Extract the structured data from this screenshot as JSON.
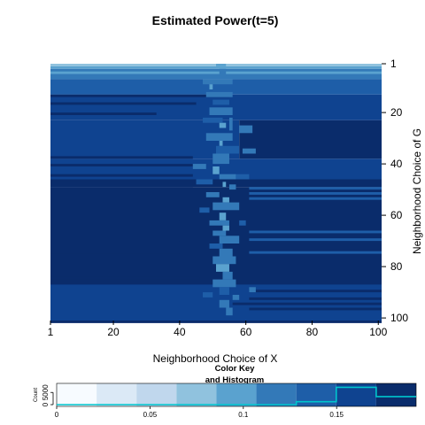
{
  "chart_data": {
    "type": "heatmap",
    "title": "Estimated Power(t=5)",
    "xlabel": "Neighborhood Choice of X",
    "ylabel": "Neighborhood Choice of G",
    "x_range": [
      1,
      101
    ],
    "y_range": [
      1,
      101
    ],
    "x_ticks": [
      1,
      20,
      40,
      60,
      80,
      100
    ],
    "y_ticks": [
      1,
      20,
      40,
      60,
      80,
      100
    ],
    "colorscale": [
      "#f7fbff",
      "#dbe9f6",
      "#c0d7ed",
      "#90c2de",
      "#5aa2cf",
      "#3379b8",
      "#1e5ea8",
      "#0f4390",
      "#0a2c6b"
    ],
    "color_breaks": [
      0,
      0.0214,
      0.0428,
      0.0642,
      0.0856,
      0.107,
      0.1284,
      0.1498,
      0.1712,
      0.1926
    ],
    "heat_rows": [
      {
        "y": [
          1,
          1
        ],
        "segs": [
          [
            1,
            101,
            3
          ]
        ]
      },
      {
        "y": [
          2,
          2
        ],
        "segs": [
          [
            1,
            101,
            4
          ]
        ]
      },
      {
        "y": [
          3,
          6
        ],
        "segs": [
          [
            1,
            101,
            5
          ]
        ]
      },
      {
        "y": [
          7,
          12
        ],
        "segs": [
          [
            1,
            101,
            6
          ]
        ]
      },
      {
        "y": [
          13,
          22
        ],
        "segs": [
          [
            1,
            101,
            7
          ]
        ]
      },
      {
        "y": [
          23,
          37
        ],
        "segs": [
          [
            1,
            58,
            7
          ],
          [
            58,
            101,
            8
          ]
        ]
      },
      {
        "y": [
          38,
          45
        ],
        "segs": [
          [
            1,
            101,
            7
          ]
        ]
      },
      {
        "y": [
          46,
          48
        ],
        "segs": [
          [
            1,
            101,
            8
          ]
        ]
      },
      {
        "y": [
          49,
          60
        ],
        "segs": [
          [
            1,
            101,
            8
          ]
        ]
      },
      {
        "y": [
          61,
          101
        ],
        "segs": [
          [
            1,
            101,
            8
          ]
        ]
      }
    ],
    "heat_overlays": [
      {
        "y": [
          4,
          5
        ],
        "segs": [
          [
            1,
            101,
            4
          ]
        ]
      },
      {
        "y": [
          13,
          14
        ],
        "segs": [
          [
            1,
            55,
            8
          ]
        ]
      },
      {
        "y": [
          16,
          17
        ],
        "segs": [
          [
            1,
            45,
            8
          ]
        ]
      },
      {
        "y": [
          20,
          21
        ],
        "segs": [
          [
            1,
            33,
            8
          ]
        ]
      },
      {
        "y": [
          37,
          38
        ],
        "segs": [
          [
            1,
            44,
            8
          ]
        ]
      },
      {
        "y": [
          40,
          41
        ],
        "segs": [
          [
            1,
            44,
            8
          ]
        ]
      },
      {
        "y": [
          44,
          45
        ],
        "segs": [
          [
            1,
            44,
            8
          ]
        ]
      },
      {
        "y": [
          47,
          49
        ],
        "segs": [
          [
            1,
            44,
            8
          ]
        ]
      },
      {
        "y": [
          55,
          56
        ],
        "segs": [
          [
            1,
            40,
            8
          ]
        ]
      },
      {
        "y": [
          61,
          62
        ],
        "segs": [
          [
            1,
            40,
            8
          ]
        ]
      },
      {
        "y": [
          65,
          66
        ],
        "segs": [
          [
            1,
            46,
            8
          ]
        ]
      },
      {
        "y": [
          70,
          75
        ],
        "segs": [
          [
            1,
            40,
            8
          ]
        ]
      },
      {
        "y": [
          84,
          85
        ],
        "segs": [
          [
            1,
            46,
            8
          ]
        ]
      },
      {
        "y": [
          86,
          87
        ],
        "segs": [
          [
            1,
            52,
            8
          ]
        ]
      },
      {
        "y": [
          49,
          50
        ],
        "segs": [
          [
            61,
            101,
            6
          ]
        ]
      },
      {
        "y": [
          51,
          52
        ],
        "segs": [
          [
            61,
            101,
            6
          ]
        ]
      },
      {
        "y": [
          53,
          54
        ],
        "segs": [
          [
            61,
            101,
            6
          ]
        ]
      },
      {
        "y": [
          66,
          67
        ],
        "segs": [
          [
            61,
            101,
            6
          ]
        ]
      },
      {
        "y": [
          69,
          70
        ],
        "segs": [
          [
            61,
            101,
            6
          ]
        ]
      },
      {
        "y": [
          74,
          75
        ],
        "segs": [
          [
            61,
            101,
            6
          ]
        ]
      },
      {
        "y": [
          87,
          101
        ],
        "segs": [
          [
            1,
            101,
            7
          ]
        ]
      },
      {
        "y": [
          89,
          90
        ],
        "segs": [
          [
            61,
            101,
            8
          ]
        ]
      },
      {
        "y": [
          92,
          93
        ],
        "segs": [
          [
            61,
            101,
            8
          ]
        ]
      },
      {
        "y": [
          94,
          95
        ],
        "segs": [
          [
            56,
            101,
            8
          ]
        ]
      },
      {
        "y": [
          96,
          97
        ],
        "segs": [
          [
            61,
            101,
            8
          ]
        ]
      }
    ],
    "heat_spots": [
      [
        51,
        1,
        54,
        2,
        4
      ],
      [
        52,
        3,
        54,
        6,
        5
      ],
      [
        47,
        7,
        56,
        9,
        5
      ],
      [
        49,
        9,
        50,
        11,
        4
      ],
      [
        48,
        12,
        56,
        14,
        5
      ],
      [
        50,
        15,
        55,
        17,
        6
      ],
      [
        49,
        18,
        56,
        21,
        5
      ],
      [
        47,
        22,
        53,
        24,
        6
      ],
      [
        52,
        24,
        54,
        26,
        4
      ],
      [
        55,
        22,
        56,
        27,
        5
      ],
      [
        48,
        28,
        56,
        31,
        5
      ],
      [
        52,
        31,
        53,
        33,
        4
      ],
      [
        51,
        33,
        58,
        36,
        6
      ],
      [
        50,
        36,
        55,
        40,
        5
      ],
      [
        44,
        40,
        48,
        42,
        5
      ],
      [
        50,
        41,
        52,
        44,
        4
      ],
      [
        52,
        44,
        57,
        46,
        5
      ],
      [
        45,
        46,
        50,
        48,
        6
      ],
      [
        53,
        47,
        54,
        49,
        4
      ],
      [
        55,
        48,
        57,
        50,
        5
      ],
      [
        48,
        51,
        52,
        53,
        5
      ],
      [
        53,
        53,
        55,
        55,
        4
      ],
      [
        50,
        55,
        58,
        58,
        5
      ],
      [
        46,
        57,
        49,
        59,
        6
      ],
      [
        52,
        59,
        54,
        62,
        4
      ],
      [
        49,
        62,
        55,
        64,
        5
      ],
      [
        53,
        64,
        55,
        66,
        4
      ],
      [
        50,
        66,
        54,
        68,
        5
      ],
      [
        52,
        68,
        58,
        71,
        5
      ],
      [
        49,
        71,
        53,
        73,
        6
      ],
      [
        52,
        73,
        56,
        76,
        5
      ],
      [
        50,
        76,
        57,
        79,
        5
      ],
      [
        51,
        79,
        55,
        82,
        4
      ],
      [
        53,
        82,
        56,
        85,
        5
      ],
      [
        50,
        85,
        57,
        88,
        5
      ],
      [
        52,
        88,
        55,
        91,
        6
      ],
      [
        56,
        91,
        58,
        93,
        5
      ],
      [
        47,
        90,
        50,
        92,
        6
      ],
      [
        52,
        93,
        55,
        96,
        5
      ],
      [
        54,
        96,
        56,
        99,
        5
      ],
      [
        58,
        25,
        62,
        28,
        5
      ],
      [
        57,
        44,
        61,
        46,
        6
      ],
      [
        59,
        34,
        63,
        36,
        5
      ],
      [
        58,
        62,
        60,
        64,
        6
      ],
      [
        61,
        88,
        63,
        90,
        5
      ]
    ],
    "key_title": "Color Key\nand Histogram",
    "key_ylabel": "Count",
    "key_yticks": [
      0,
      5000
    ],
    "key_xticks": [
      0,
      0.05,
      0.1,
      0.15
    ],
    "key_xrange": [
      0,
      0.1926
    ],
    "histogram_bins": [
      0,
      0,
      0,
      0,
      0,
      0,
      1200,
      7100,
      3300
    ],
    "histogram_ymax": 8000,
    "histogram_color": "#00c5cd",
    "histogram_line_color": "#00c5cd"
  }
}
